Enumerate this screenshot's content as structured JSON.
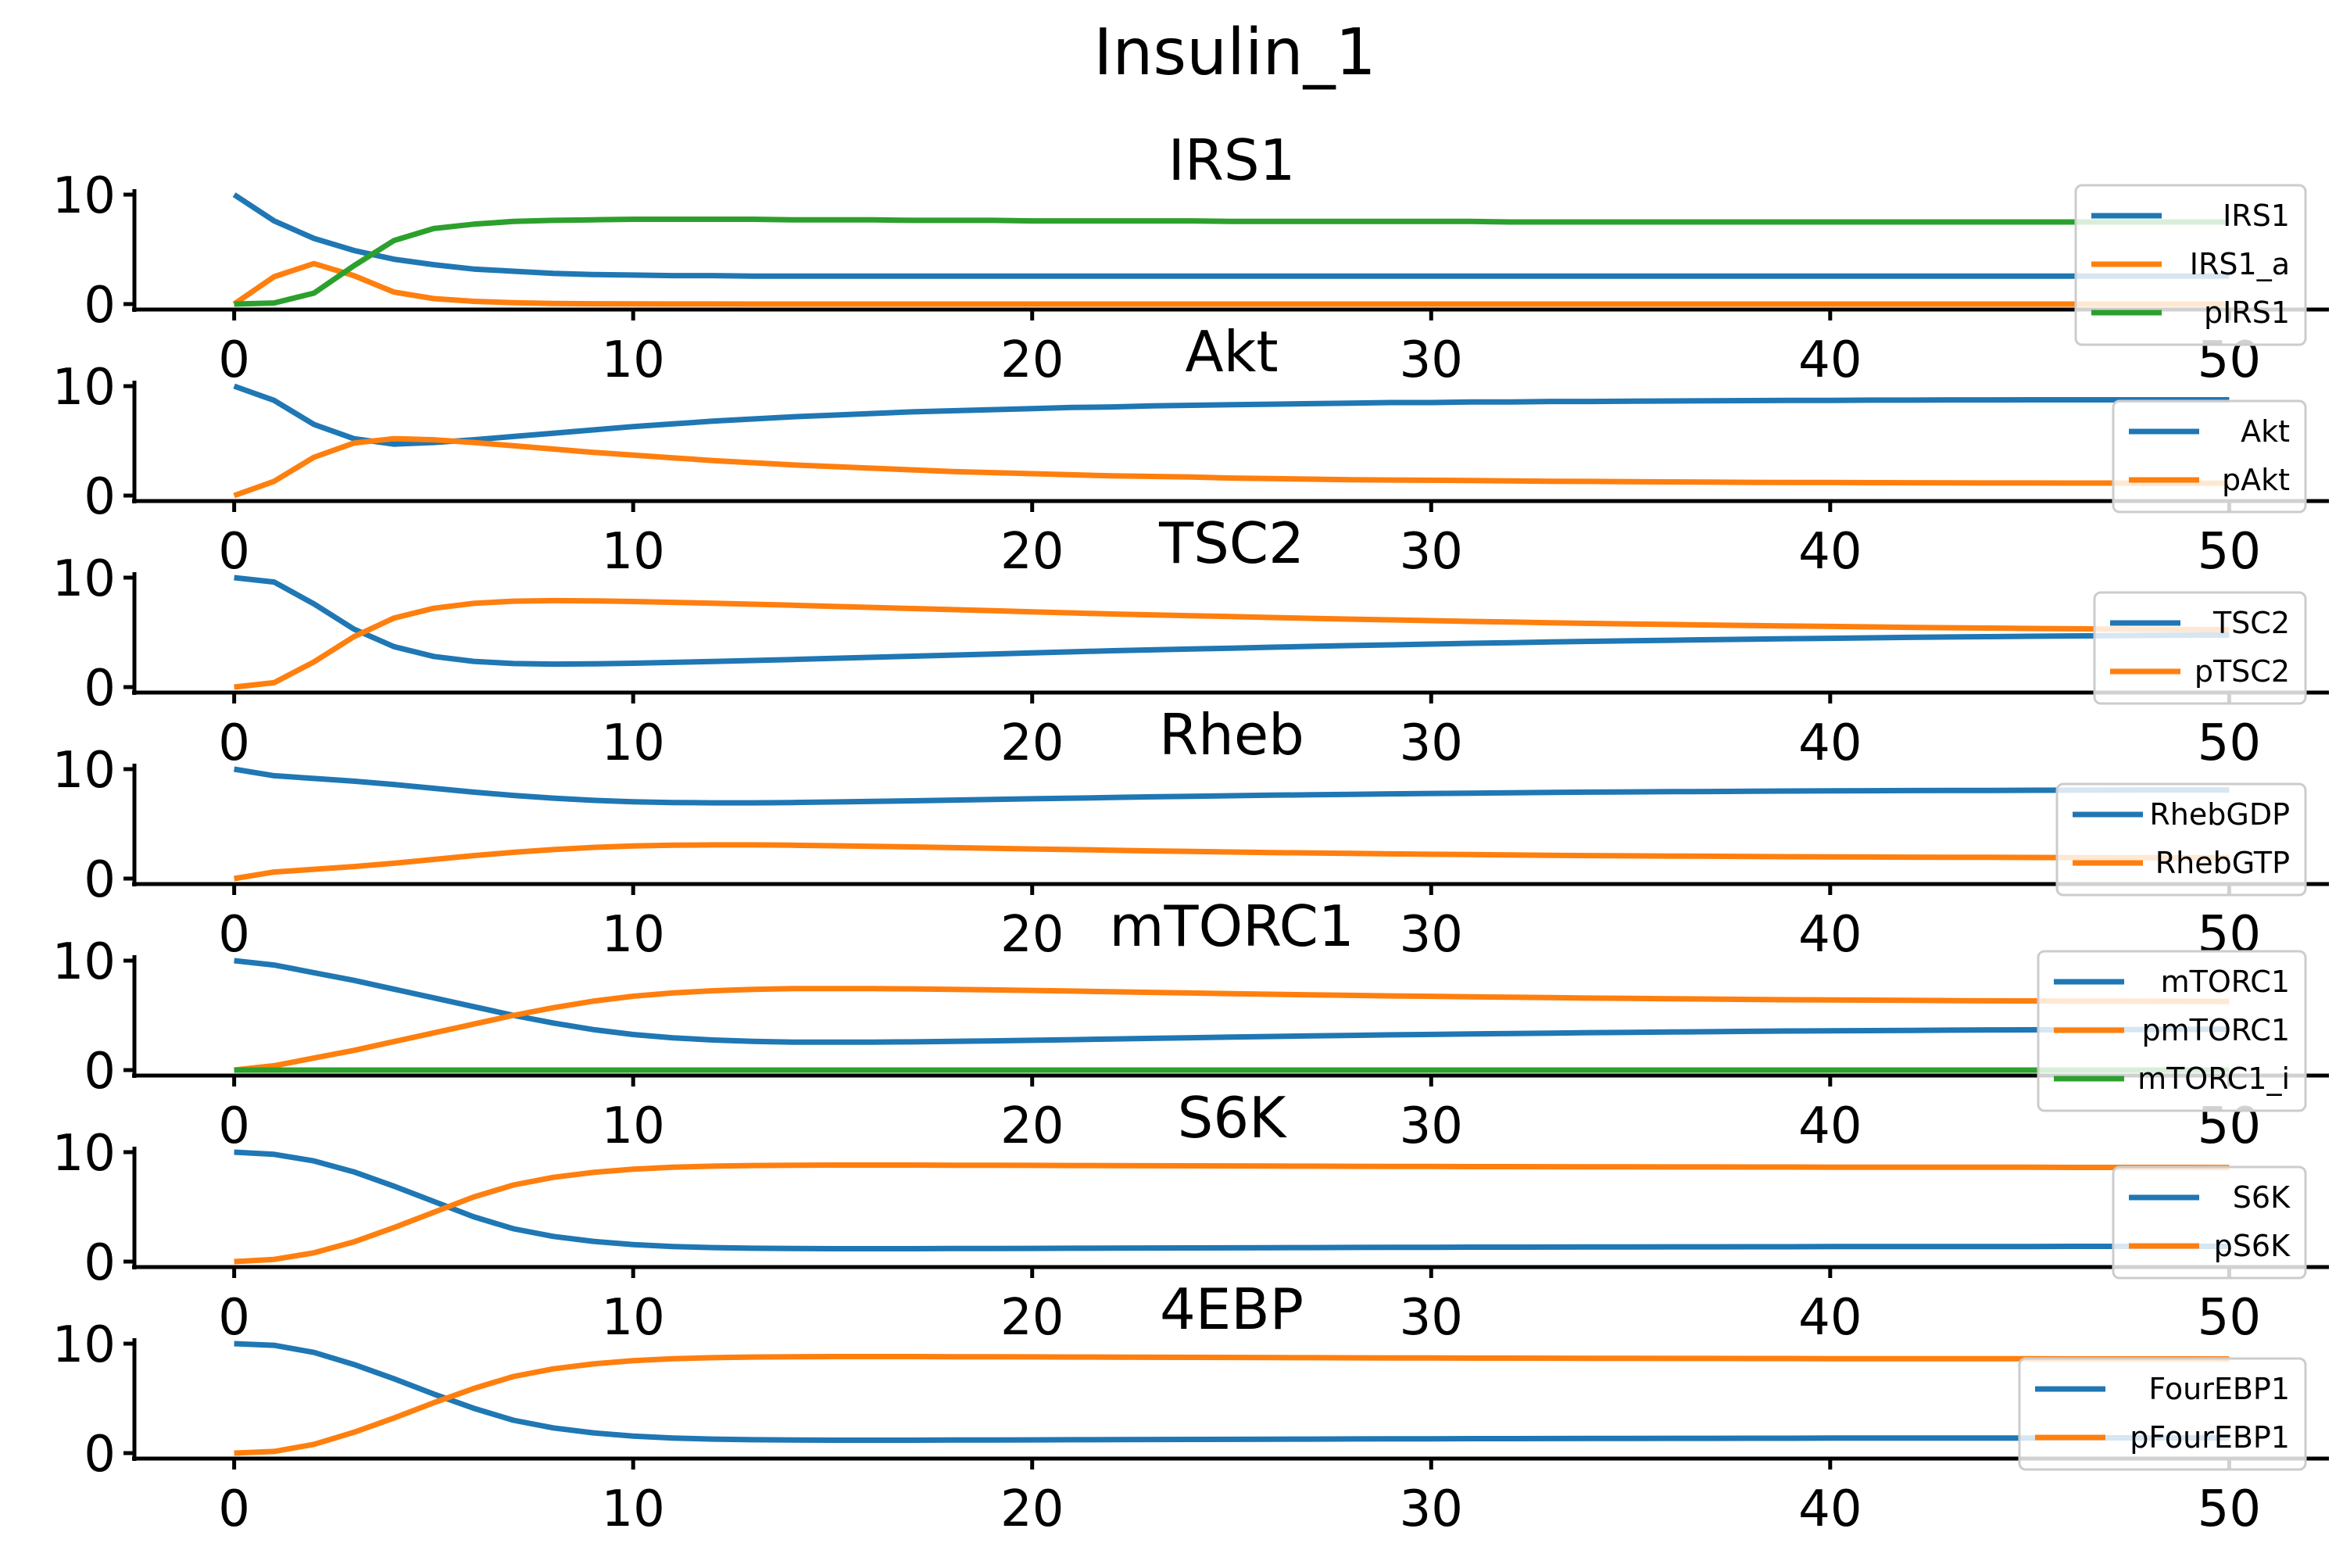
{
  "chart_data": {
    "type": "line",
    "suptitle": "Insulin_1",
    "xlim": [
      -2.5,
      52.5
    ],
    "ylim": [
      -0.5,
      10.5
    ],
    "yticks": [
      0,
      10
    ],
    "xticks": [
      0,
      10,
      20,
      30,
      40,
      50
    ],
    "legend_loc": "right",
    "x": [
      0,
      1,
      2,
      3,
      4,
      5,
      6,
      7,
      8,
      9,
      10,
      11,
      12,
      13,
      14,
      15,
      16,
      17,
      18,
      19,
      20,
      21,
      22,
      23,
      24,
      25,
      26,
      27,
      28,
      29,
      30,
      31,
      32,
      33,
      34,
      35,
      36,
      37,
      38,
      39,
      40,
      41,
      42,
      43,
      44,
      45,
      46,
      47,
      48,
      49,
      50
    ],
    "colors": {
      "blue": "#1f77b4",
      "orange": "#ff7f0e",
      "green": "#2ca02c"
    },
    "panels": [
      {
        "title": "IRS1",
        "series": [
          {
            "name": "IRS1",
            "color": "#1f77b4",
            "values": [
              10,
              7.6,
              6,
              4.9,
              4.1,
              3.6,
              3.2,
              3.0,
              2.8,
              2.7,
              2.65,
              2.6,
              2.6,
              2.55,
              2.55,
              2.55,
              2.55,
              2.55,
              2.55,
              2.55,
              2.55,
              2.55,
              2.55,
              2.55,
              2.55,
              2.55,
              2.55,
              2.55,
              2.55,
              2.55,
              2.55,
              2.55,
              2.55,
              2.55,
              2.55,
              2.55,
              2.55,
              2.55,
              2.55,
              2.55,
              2.55,
              2.55,
              2.55,
              2.55,
              2.55,
              2.55,
              2.55,
              2.55,
              2.55,
              2.55,
              2.55
            ]
          },
          {
            "name": "IRS1_a",
            "color": "#ff7f0e",
            "values": [
              0,
              2.5,
              3.7,
              2.6,
              1.1,
              0.5,
              0.25,
              0.12,
              0.06,
              0.03,
              0.02,
              0.01,
              0.01,
              0,
              0,
              0,
              0,
              0,
              0,
              0,
              0,
              0,
              0,
              0,
              0,
              0,
              0,
              0,
              0,
              0,
              0,
              0,
              0,
              0,
              0,
              0,
              0,
              0,
              0,
              0,
              0,
              0,
              0,
              0,
              0,
              0,
              0,
              0,
              0,
              0,
              0
            ]
          },
          {
            "name": "pIRS1",
            "color": "#2ca02c",
            "values": [
              0,
              0.1,
              1.0,
              3.5,
              5.8,
              6.9,
              7.3,
              7.55,
              7.65,
              7.7,
              7.75,
              7.75,
              7.75,
              7.75,
              7.7,
              7.7,
              7.7,
              7.65,
              7.65,
              7.65,
              7.6,
              7.6,
              7.6,
              7.6,
              7.6,
              7.55,
              7.55,
              7.55,
              7.55,
              7.55,
              7.55,
              7.55,
              7.5,
              7.5,
              7.5,
              7.5,
              7.5,
              7.5,
              7.5,
              7.5,
              7.5,
              7.5,
              7.5,
              7.5,
              7.5,
              7.5,
              7.5,
              7.5,
              7.5,
              7.5,
              7.5
            ]
          }
        ]
      },
      {
        "title": "Akt",
        "series": [
          {
            "name": "Akt",
            "color": "#1f77b4",
            "values": [
              10,
              8.7,
              6.5,
              5.2,
              4.7,
              4.85,
              5.1,
              5.4,
              5.7,
              6.0,
              6.3,
              6.55,
              6.8,
              7.0,
              7.2,
              7.35,
              7.5,
              7.65,
              7.75,
              7.85,
              7.95,
              8.05,
              8.1,
              8.2,
              8.25,
              8.3,
              8.35,
              8.4,
              8.45,
              8.5,
              8.5,
              8.55,
              8.55,
              8.6,
              8.6,
              8.62,
              8.64,
              8.66,
              8.68,
              8.7,
              8.7,
              8.72,
              8.72,
              8.74,
              8.74,
              8.75,
              8.75,
              8.75,
              8.75,
              8.75,
              8.75
            ]
          },
          {
            "name": "pAkt",
            "color": "#ff7f0e",
            "values": [
              0,
              1.3,
              3.5,
              4.8,
              5.2,
              5.1,
              4.85,
              4.55,
              4.25,
              3.95,
              3.7,
              3.45,
              3.2,
              3.0,
              2.8,
              2.65,
              2.5,
              2.35,
              2.2,
              2.1,
              2.0,
              1.9,
              1.8,
              1.75,
              1.7,
              1.6,
              1.55,
              1.5,
              1.45,
              1.42,
              1.4,
              1.37,
              1.34,
              1.31,
              1.29,
              1.27,
              1.25,
              1.23,
              1.21,
              1.2,
              1.19,
              1.18,
              1.17,
              1.16,
              1.15,
              1.15,
              1.14,
              1.14,
              1.13,
              1.13,
              1.12
            ]
          }
        ]
      },
      {
        "title": "TSC2",
        "series": [
          {
            "name": "TSC2",
            "color": "#1f77b4",
            "values": [
              10,
              9.6,
              7.6,
              5.3,
              3.7,
              2.8,
              2.35,
              2.15,
              2.1,
              2.12,
              2.18,
              2.26,
              2.34,
              2.43,
              2.52,
              2.62,
              2.72,
              2.82,
              2.92,
              3.02,
              3.12,
              3.22,
              3.32,
              3.4,
              3.48,
              3.56,
              3.64,
              3.72,
              3.79,
              3.86,
              3.93,
              4.0,
              4.06,
              4.12,
              4.18,
              4.23,
              4.28,
              4.33,
              4.38,
              4.42,
              4.46,
              4.5,
              4.54,
              4.58,
              4.61,
              4.64,
              4.67,
              4.7,
              4.72,
              4.74,
              4.76
            ]
          },
          {
            "name": "pTSC2",
            "color": "#ff7f0e",
            "values": [
              0,
              0.4,
              2.3,
              4.6,
              6.3,
              7.2,
              7.65,
              7.85,
              7.9,
              7.88,
              7.82,
              7.74,
              7.66,
              7.57,
              7.48,
              7.38,
              7.28,
              7.18,
              7.08,
              6.98,
              6.88,
              6.78,
              6.68,
              6.6,
              6.52,
              6.44,
              6.36,
              6.28,
              6.21,
              6.14,
              6.07,
              6.0,
              5.94,
              5.88,
              5.82,
              5.77,
              5.72,
              5.67,
              5.62,
              5.58,
              5.54,
              5.5,
              5.46,
              5.42,
              5.39,
              5.36,
              5.33,
              5.3,
              5.28,
              5.26,
              5.24
            ]
          }
        ]
      },
      {
        "title": "Rheb",
        "series": [
          {
            "name": "RhebGDP",
            "color": "#1f77b4",
            "values": [
              10,
              9.4,
              9.15,
              8.9,
              8.6,
              8.25,
              7.9,
              7.6,
              7.35,
              7.15,
              7.02,
              6.95,
              6.92,
              6.92,
              6.95,
              7.0,
              7.05,
              7.11,
              7.17,
              7.23,
              7.29,
              7.35,
              7.41,
              7.47,
              7.52,
              7.57,
              7.62,
              7.66,
              7.7,
              7.74,
              7.78,
              7.81,
              7.84,
              7.87,
              7.9,
              7.92,
              7.94,
              7.96,
              7.98,
              8.0,
              8.02,
              8.03,
              8.04,
              8.05,
              8.06,
              8.07,
              8.08,
              8.09,
              8.1,
              8.1,
              8.1
            ]
          },
          {
            "name": "RhebGTP",
            "color": "#ff7f0e",
            "values": [
              0,
              0.6,
              0.85,
              1.1,
              1.4,
              1.75,
              2.1,
              2.4,
              2.65,
              2.85,
              2.98,
              3.05,
              3.08,
              3.08,
              3.05,
              3.0,
              2.95,
              2.89,
              2.83,
              2.77,
              2.71,
              2.65,
              2.59,
              2.53,
              2.48,
              2.43,
              2.38,
              2.34,
              2.3,
              2.26,
              2.22,
              2.19,
              2.16,
              2.13,
              2.1,
              2.08,
              2.06,
              2.04,
              2.02,
              2.0,
              1.98,
              1.97,
              1.96,
              1.95,
              1.94,
              1.93,
              1.92,
              1.91,
              1.9,
              1.9,
              1.9
            ]
          }
        ]
      },
      {
        "title": "mTORC1",
        "series": [
          {
            "name": "mTORC1",
            "color": "#1f77b4",
            "values": [
              10,
              9.6,
              8.9,
              8.2,
              7.4,
              6.6,
              5.8,
              5.0,
              4.3,
              3.7,
              3.25,
              2.95,
              2.75,
              2.62,
              2.56,
              2.55,
              2.56,
              2.58,
              2.62,
              2.67,
              2.72,
              2.78,
              2.84,
              2.9,
              2.96,
              3.02,
              3.07,
              3.12,
              3.17,
              3.22,
              3.26,
              3.3,
              3.34,
              3.38,
              3.42,
              3.45,
              3.48,
              3.51,
              3.54,
              3.57,
              3.59,
              3.61,
              3.63,
              3.65,
              3.67,
              3.68,
              3.69,
              3.7,
              3.71,
              3.72,
              3.73
            ]
          },
          {
            "name": "pmTORC1",
            "color": "#ff7f0e",
            "values": [
              0,
              0.4,
              1.1,
              1.8,
              2.6,
              3.4,
              4.2,
              5.0,
              5.7,
              6.3,
              6.75,
              7.05,
              7.25,
              7.38,
              7.44,
              7.45,
              7.44,
              7.42,
              7.38,
              7.33,
              7.28,
              7.22,
              7.16,
              7.1,
              7.04,
              6.98,
              6.93,
              6.88,
              6.83,
              6.78,
              6.74,
              6.7,
              6.66,
              6.62,
              6.58,
              6.55,
              6.52,
              6.49,
              6.46,
              6.43,
              6.41,
              6.39,
              6.37,
              6.35,
              6.33,
              6.32,
              6.31,
              6.3,
              6.29,
              6.28,
              6.27
            ]
          },
          {
            "name": "mTORC1_i",
            "color": "#2ca02c",
            "values": [
              0,
              0,
              0,
              0,
              0,
              0,
              0,
              0,
              0,
              0,
              0,
              0,
              0,
              0,
              0,
              0,
              0,
              0,
              0,
              0,
              0,
              0,
              0,
              0,
              0,
              0,
              0,
              0,
              0,
              0,
              0,
              0,
              0,
              0,
              0,
              0,
              0,
              0,
              0,
              0,
              0,
              0,
              0,
              0,
              0,
              0,
              0,
              0,
              0,
              0,
              0
            ]
          }
        ]
      },
      {
        "title": "S6K",
        "series": [
          {
            "name": "S6K",
            "color": "#1f77b4",
            "values": [
              10,
              9.8,
              9.2,
              8.2,
              6.9,
              5.5,
              4.1,
              3.0,
              2.3,
              1.85,
              1.55,
              1.38,
              1.28,
              1.22,
              1.19,
              1.18,
              1.18,
              1.18,
              1.19,
              1.2,
              1.21,
              1.22,
              1.23,
              1.24,
              1.25,
              1.26,
              1.27,
              1.28,
              1.29,
              1.3,
              1.31,
              1.32,
              1.32,
              1.33,
              1.34,
              1.34,
              1.35,
              1.35,
              1.36,
              1.36,
              1.37,
              1.37,
              1.37,
              1.38,
              1.38,
              1.38,
              1.39,
              1.39,
              1.39,
              1.39,
              1.4
            ]
          },
          {
            "name": "pS6K",
            "color": "#ff7f0e",
            "values": [
              0,
              0.2,
              0.8,
              1.8,
              3.1,
              4.5,
              5.9,
              7.0,
              7.7,
              8.15,
              8.45,
              8.62,
              8.72,
              8.78,
              8.81,
              8.82,
              8.82,
              8.82,
              8.81,
              8.8,
              8.79,
              8.78,
              8.77,
              8.76,
              8.75,
              8.74,
              8.73,
              8.72,
              8.71,
              8.7,
              8.69,
              8.68,
              8.68,
              8.67,
              8.66,
              8.66,
              8.65,
              8.65,
              8.64,
              8.64,
              8.63,
              8.63,
              8.63,
              8.62,
              8.62,
              8.62,
              8.61,
              8.61,
              8.61,
              8.61,
              8.6
            ]
          }
        ]
      },
      {
        "title": "4EBP",
        "series": [
          {
            "name": "FourEBP1",
            "color": "#1f77b4",
            "values": [
              10,
              9.85,
              9.2,
              8.1,
              6.8,
              5.4,
              4.1,
              3.0,
              2.3,
              1.85,
              1.55,
              1.38,
              1.28,
              1.22,
              1.19,
              1.18,
              1.18,
              1.18,
              1.19,
              1.2,
              1.21,
              1.22,
              1.23,
              1.24,
              1.25,
              1.26,
              1.27,
              1.28,
              1.29,
              1.3,
              1.31,
              1.32,
              1.32,
              1.33,
              1.34,
              1.34,
              1.35,
              1.35,
              1.36,
              1.36,
              1.37,
              1.37,
              1.37,
              1.38,
              1.38,
              1.38,
              1.39,
              1.39,
              1.39,
              1.39,
              1.4
            ]
          },
          {
            "name": "pFourEBP1",
            "color": "#ff7f0e",
            "values": [
              0,
              0.15,
              0.8,
              1.9,
              3.2,
              4.6,
              5.9,
              7.0,
              7.7,
              8.15,
              8.45,
              8.62,
              8.72,
              8.78,
              8.81,
              8.82,
              8.82,
              8.82,
              8.81,
              8.8,
              8.79,
              8.78,
              8.77,
              8.76,
              8.75,
              8.74,
              8.73,
              8.72,
              8.71,
              8.7,
              8.69,
              8.68,
              8.68,
              8.67,
              8.66,
              8.66,
              8.65,
              8.65,
              8.64,
              8.64,
              8.63,
              8.63,
              8.63,
              8.62,
              8.62,
              8.62,
              8.61,
              8.61,
              8.61,
              8.61,
              8.6
            ]
          }
        ]
      }
    ]
  }
}
